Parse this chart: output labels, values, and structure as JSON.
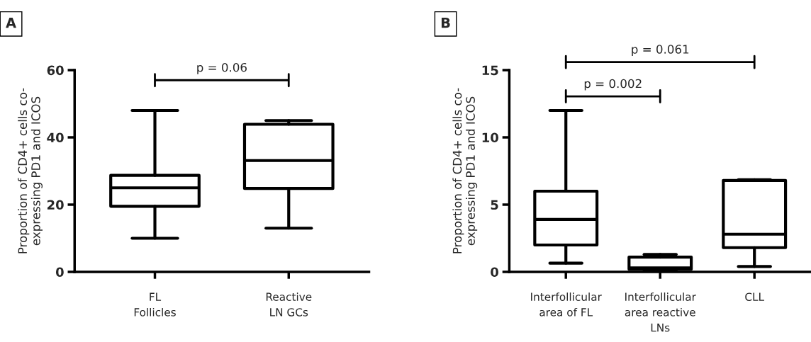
{
  "chart_data": [
    {
      "type": "box",
      "title": "A",
      "ylabel": "Proportion of CD4+ cells co-\nexpressing PD1 and ICOS",
      "categories": [
        "FL\nFollicles",
        "Reactive\nLN GCs"
      ],
      "ylim": [
        0,
        60
      ],
      "yticks": [
        0,
        20,
        40,
        60
      ],
      "grid": false,
      "annotations": [
        "p = 0.06"
      ],
      "boxes": [
        {
          "low": 10,
          "q1": 19.5,
          "median": 25,
          "q3": 28.7,
          "high": 48
        },
        {
          "low": 13,
          "q1": 24.8,
          "median": 33.1,
          "q3": 43.9,
          "high": 45
        }
      ]
    },
    {
      "type": "box",
      "title": "B",
      "ylabel": "Proportion of CD4+ cells co-\nexpressing PD1 and ICOS",
      "categories": [
        "Interfollicular\narea of FL",
        "Interfollicular\narea reactive\nLNs",
        "CLL"
      ],
      "ylim": [
        0,
        15
      ],
      "yticks": [
        0,
        5,
        10,
        15
      ],
      "grid": false,
      "annotations": [
        "p = 0.002",
        "p = 0.061"
      ],
      "boxes": [
        {
          "low": 0.65,
          "q1": 2.0,
          "median": 3.9,
          "q3": 6.0,
          "high": 12
        },
        {
          "low": 0.1,
          "q1": 0.2,
          "median": 0.3,
          "q3": 1.1,
          "high": 1.3
        },
        {
          "low": 0.4,
          "q1": 1.8,
          "median": 2.8,
          "q3": 6.8,
          "high": 6.85
        }
      ]
    }
  ]
}
